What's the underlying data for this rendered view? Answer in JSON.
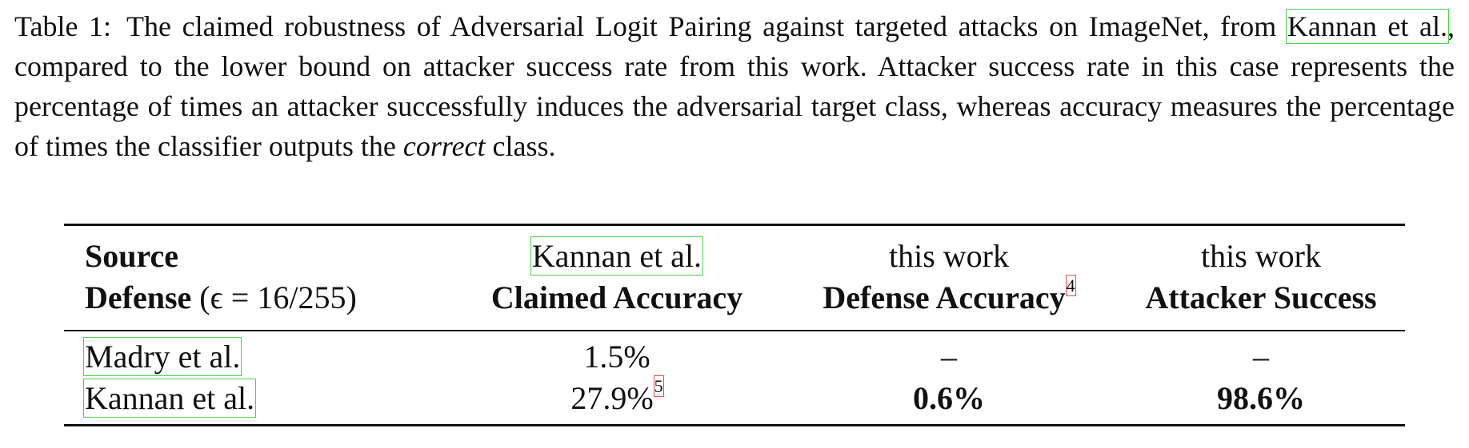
{
  "caption": {
    "label": "Table 1:",
    "part1": "The claimed robustness of Adversarial Logit Pairing against targeted attacks on ImageNet, from",
    "cite": "Kannan et al.",
    "part2": ", compared to the lower bound on attacker success rate from this work. Attacker success rate in this case represents the percentage of times an attacker successfully induces the adversarial target class, whereas accuracy measures the percentage of times the classifier outputs the",
    "emphasis": "correct",
    "part3": "class."
  },
  "table": {
    "headers": [
      {
        "line1": "Source",
        "line2_bold": "Defense",
        "line2_rest": "(ϵ = 16/255)"
      },
      {
        "line1": "Kannan et al.",
        "line2": "Claimed Accuracy"
      },
      {
        "line1": "this work",
        "line2": "Defense Accuracy",
        "footnote": "4"
      },
      {
        "line1": "this work",
        "line2": "Attacker Success"
      }
    ],
    "rows": [
      {
        "source": "Madry et al.",
        "claimed": "1.5%",
        "claimed_footnote": "",
        "defense": "–",
        "attacker": "–"
      },
      {
        "source": "Kannan et al.",
        "claimed": "27.9%",
        "claimed_footnote": "5",
        "defense": "0.6%",
        "attacker": "98.6%"
      }
    ]
  }
}
